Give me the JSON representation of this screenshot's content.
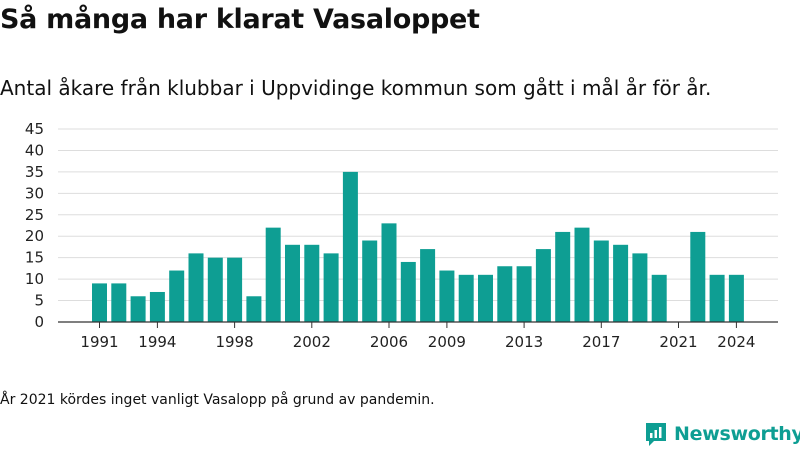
{
  "title": "Så många har klarat Vasaloppet",
  "subtitle": "Antal åkare från klubbar i Uppvidinge kommun som gått i mål år för år.",
  "footnote": "År 2021 kördes inget vanligt Vasalopp på grund av pandemin.",
  "brand": {
    "name": "Newsworthy",
    "color": "#0e9e93",
    "icon": "newsworthy-logo-icon"
  },
  "colors": {
    "bar": "#0e9e93",
    "grid": "#dddddd",
    "axis": "#333333",
    "text": "#111111"
  },
  "chart_data": {
    "type": "bar",
    "x": [
      1991,
      1992,
      1993,
      1994,
      1995,
      1996,
      1997,
      1998,
      1999,
      2000,
      2001,
      2002,
      2003,
      2004,
      2005,
      2006,
      2007,
      2008,
      2009,
      2010,
      2011,
      2012,
      2013,
      2014,
      2015,
      2016,
      2017,
      2018,
      2019,
      2020,
      2021,
      2022,
      2023,
      2024
    ],
    "values": [
      9,
      9,
      6,
      7,
      12,
      16,
      15,
      15,
      6,
      22,
      18,
      18,
      16,
      35,
      19,
      23,
      14,
      17,
      12,
      11,
      11,
      13,
      13,
      17,
      21,
      22,
      19,
      18,
      16,
      11,
      0,
      21,
      11,
      11
    ],
    "xticks": [
      1991,
      1994,
      1998,
      2002,
      2006,
      2009,
      2013,
      2017,
      2021,
      2024
    ],
    "yticks": [
      0,
      5,
      10,
      15,
      20,
      25,
      30,
      35,
      40,
      45
    ],
    "ylim": [
      0,
      45
    ],
    "grid": true,
    "legend": "none"
  }
}
